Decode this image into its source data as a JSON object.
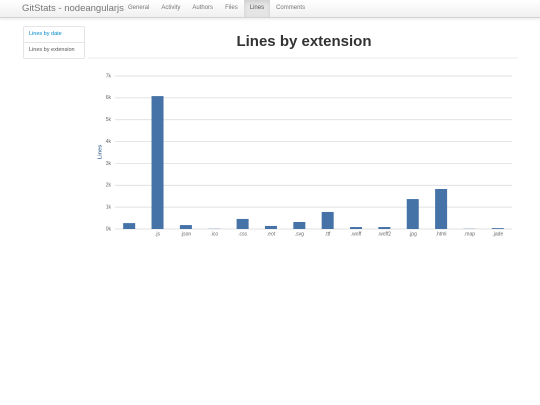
{
  "navbar": {
    "brand": "GitStats - nodeangularjs",
    "items": [
      "General",
      "Activity",
      "Authors",
      "Files",
      "Lines",
      "Comments"
    ],
    "active": 4
  },
  "sidebar": {
    "items": [
      "Lines by date",
      "Lines by extension"
    ],
    "active": 1
  },
  "chart_data": {
    "type": "bar",
    "title": "Lines by extension",
    "y_label": "Lines",
    "categories": [
      null,
      ".js",
      ".json",
      ".ico",
      ".css",
      ".eot",
      ".svg",
      ".ttf",
      ".woff",
      ".woff2",
      ".jpg",
      ".html",
      ".map",
      ".jade"
    ],
    "values": [
      270,
      6080,
      180,
      10,
      460,
      140,
      320,
      780,
      90,
      90,
      1370,
      1830,
      10,
      40
    ],
    "color": "#4572a7",
    "ylim": [
      0,
      7000
    ],
    "yticks": [
      {
        "value": 0,
        "label": "0k"
      },
      {
        "value": 1000,
        "label": "1k"
      },
      {
        "value": 2000,
        "label": "2k"
      },
      {
        "value": 3000,
        "label": "3k"
      },
      {
        "value": 4000,
        "label": "4k"
      },
      {
        "value": 5000,
        "label": "5k"
      },
      {
        "value": 6000,
        "label": "6k"
      },
      {
        "value": 7000,
        "label": "7k"
      }
    ],
    "grid": true
  }
}
